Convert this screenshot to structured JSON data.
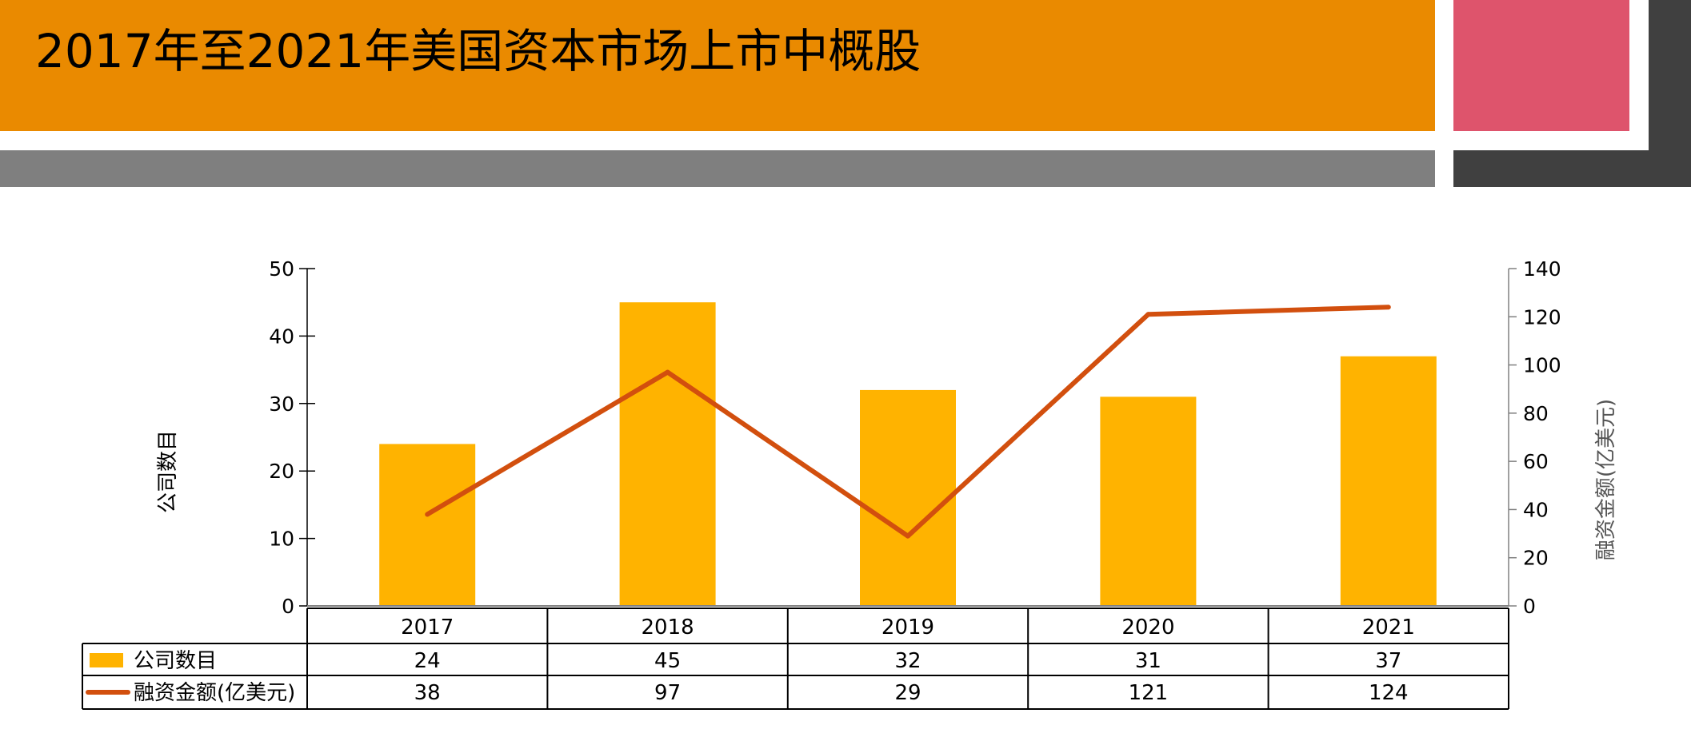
{
  "slide": {
    "title": "2017年至2021年美国资本市场上市中概股"
  },
  "colors": {
    "title_band": "#EA8A00",
    "accent_pink": "#DE546C",
    "gray_bar": "#7F7F7F",
    "dark_block": "#404040",
    "bar": "#FFB300",
    "line": "#D24F0E"
  },
  "chart_data": {
    "type": "bar",
    "categories": [
      "2017",
      "2018",
      "2019",
      "2020",
      "2021"
    ],
    "series": [
      {
        "name": "公司数目",
        "type": "bar",
        "axis": "left",
        "values": [
          24,
          45,
          32,
          31,
          37
        ]
      },
      {
        "name": "融资金额(亿美元)",
        "type": "line",
        "axis": "right",
        "values": [
          38,
          97,
          29,
          121,
          124
        ]
      }
    ],
    "ylabel": "公司数目",
    "y2label": "融资金额(亿美元)",
    "ylim": [
      0,
      50
    ],
    "y2lim": [
      0,
      140
    ],
    "yticks": [
      "0",
      "10",
      "20",
      "30",
      "40",
      "50"
    ],
    "y2ticks": [
      "0",
      "20",
      "40",
      "60",
      "80",
      "100",
      "120",
      "140"
    ],
    "data_table": true,
    "grid": false
  }
}
